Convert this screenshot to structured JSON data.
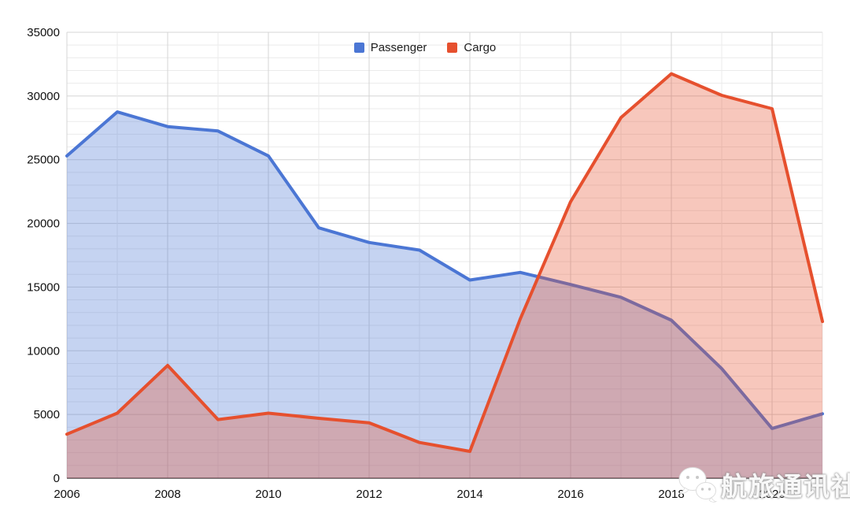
{
  "watermark": {
    "text": "航旅通讯社",
    "icon": "wechat-icon"
  },
  "chart_data": {
    "type": "area",
    "title": "",
    "xlabel": "",
    "ylabel": "",
    "x": [
      2006,
      2007,
      2008,
      2009,
      2010,
      2011,
      2012,
      2013,
      2014,
      2015,
      2016,
      2017,
      2018,
      2019,
      2020,
      2021
    ],
    "x_axis_labeled_ticks": [
      2006,
      2008,
      2010,
      2012,
      2014,
      2016,
      2018,
      2020
    ],
    "series": [
      {
        "name": "Passenger",
        "color": "#4b76d4",
        "values": [
          25300,
          28750,
          27600,
          27250,
          25300,
          19650,
          18500,
          17900,
          15550,
          16150,
          15200,
          14200,
          12400,
          8600,
          3900,
          5050
        ]
      },
      {
        "name": "Cargo",
        "color": "#e6502e",
        "values": [
          3450,
          5100,
          8850,
          4600,
          5100,
          4700,
          4350,
          2800,
          2100,
          12500,
          21700,
          28300,
          31750,
          30050,
          29000,
          12300
        ]
      }
    ],
    "ylim": [
      0,
      35000
    ],
    "y_major_step": 5000,
    "y_minor_step": 1000,
    "y_tick_labels": [
      "0",
      "5000",
      "10000",
      "15000",
      "20000",
      "25000",
      "30000",
      "35000"
    ],
    "grid": "on",
    "legend_position": "top-center",
    "fill_opacity": 0.32
  }
}
